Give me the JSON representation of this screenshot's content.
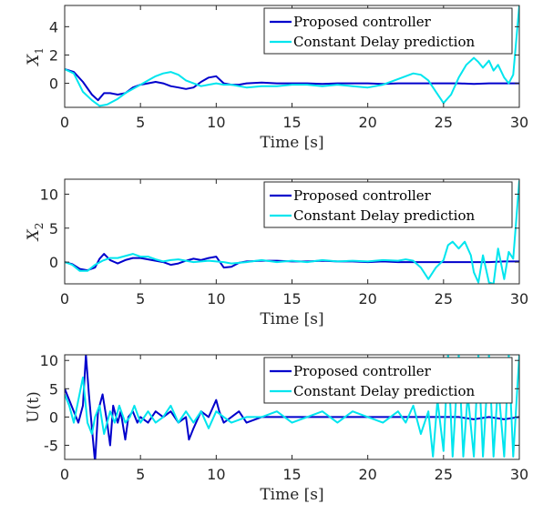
{
  "colors": {
    "proposed": "#0000cc",
    "constant": "#00e5ee",
    "axis": "#262626"
  },
  "chart_data": [
    {
      "type": "line",
      "ylabel": "X",
      "ylabel_sub": "1",
      "xlabel": "Time [s]",
      "xlim": [
        0,
        30
      ],
      "ylim": [
        -1.7,
        5.5
      ],
      "xticks": [
        "0",
        "5",
        "10",
        "15",
        "20",
        "25",
        "30"
      ],
      "yticks": [
        "0",
        "2",
        "4"
      ],
      "legend_position": "top-right",
      "series": [
        {
          "name": "Proposed controller",
          "x": [
            0,
            0.6,
            1.2,
            1.8,
            2.2,
            2.6,
            3.0,
            3.5,
            4.0,
            4.5,
            5.0,
            5.5,
            6.0,
            6.5,
            7.0,
            7.5,
            8.0,
            8.5,
            9.0,
            9.5,
            10.0,
            10.5,
            11.0,
            11.5,
            12.0,
            13,
            14,
            15,
            16,
            17,
            18,
            19,
            20,
            21,
            22,
            23,
            24,
            25,
            26,
            27,
            28,
            29,
            30
          ],
          "y": [
            1.0,
            0.8,
            0.1,
            -0.8,
            -1.2,
            -0.7,
            -0.7,
            -0.8,
            -0.7,
            -0.3,
            -0.1,
            0.0,
            0.1,
            0.0,
            -0.2,
            -0.3,
            -0.4,
            -0.3,
            0.1,
            0.4,
            0.5,
            0.0,
            -0.1,
            -0.1,
            0.0,
            0.05,
            0.0,
            0.0,
            0.0,
            -0.05,
            0.0,
            0.0,
            0.0,
            -0.05,
            0.0,
            0.0,
            0.0,
            0.0,
            0.0,
            -0.05,
            0.0,
            0.0,
            0.0
          ]
        },
        {
          "name": "Constant Delay prediction",
          "x": [
            0,
            0.6,
            1.2,
            1.8,
            2.3,
            2.8,
            3.5,
            4.0,
            4.5,
            5.0,
            5.5,
            6.0,
            6.5,
            7.0,
            7.5,
            8.0,
            8.5,
            9.0,
            9.5,
            10.0,
            10.5,
            11.0,
            11.5,
            12.0,
            13,
            14,
            15,
            16,
            17,
            18,
            19,
            20,
            21,
            22,
            23,
            23.5,
            24,
            24.5,
            25,
            25.5,
            26,
            26.5,
            27,
            27.3,
            27.6,
            28,
            28.3,
            28.6,
            29,
            29.3,
            29.6,
            30
          ],
          "y": [
            1.0,
            0.7,
            -0.6,
            -1.2,
            -1.6,
            -1.5,
            -1.1,
            -0.7,
            -0.4,
            -0.1,
            0.2,
            0.5,
            0.7,
            0.8,
            0.6,
            0.2,
            0.0,
            -0.2,
            -0.1,
            0.0,
            -0.1,
            -0.1,
            -0.2,
            -0.3,
            -0.2,
            -0.2,
            -0.1,
            -0.1,
            -0.2,
            -0.1,
            -0.2,
            -0.3,
            -0.1,
            0.3,
            0.7,
            0.6,
            0.2,
            -0.6,
            -1.4,
            -0.8,
            0.4,
            1.3,
            1.8,
            1.5,
            1.1,
            1.6,
            0.9,
            1.3,
            0.4,
            0.0,
            0.6,
            5.5
          ]
        }
      ]
    },
    {
      "type": "line",
      "ylabel": "X",
      "ylabel_sub": "2",
      "xlabel": "Time [s]",
      "xlim": [
        0,
        30
      ],
      "ylim": [
        -3.2,
        12.2
      ],
      "xticks": [
        "0",
        "5",
        "10",
        "15",
        "20",
        "25",
        "30"
      ],
      "yticks": [
        "0",
        "5",
        "10"
      ],
      "legend_position": "top-right",
      "series": [
        {
          "name": "Proposed controller",
          "x": [
            0,
            0.5,
            1.0,
            1.5,
            2.0,
            2.3,
            2.6,
            3.0,
            3.5,
            4.0,
            4.5,
            5.0,
            5.5,
            6.0,
            6.5,
            7.0,
            7.5,
            8.0,
            8.5,
            9.0,
            9.5,
            10.0,
            10.5,
            11.0,
            11.5,
            12,
            13,
            14,
            15,
            16,
            17,
            18,
            19,
            20,
            21,
            22,
            23,
            24,
            25,
            26,
            27,
            28,
            29,
            30
          ],
          "y": [
            0.0,
            -0.3,
            -1.0,
            -1.2,
            -0.8,
            0.5,
            1.2,
            0.3,
            -0.2,
            0.3,
            0.6,
            0.6,
            0.4,
            0.2,
            0.0,
            -0.4,
            -0.2,
            0.2,
            0.5,
            0.3,
            0.6,
            0.8,
            -0.8,
            -0.7,
            -0.1,
            0.1,
            0.2,
            0.2,
            0.1,
            0.1,
            0.2,
            0.1,
            0.1,
            0.0,
            0.1,
            0.0,
            0.0,
            0.0,
            0.0,
            0.0,
            0.0,
            0.0,
            0.1,
            0.1
          ]
        },
        {
          "name": "Constant Delay prediction",
          "x": [
            0,
            0.5,
            1.0,
            1.5,
            2.0,
            2.5,
            3.0,
            3.5,
            4.0,
            4.5,
            5.0,
            5.5,
            6.0,
            6.5,
            7.0,
            7.5,
            8.0,
            8.5,
            9.0,
            9.5,
            10.0,
            10.5,
            11.0,
            11.5,
            12,
            13,
            14,
            15,
            16,
            17,
            18,
            19,
            20,
            21,
            22,
            22.5,
            23,
            23.5,
            24,
            24.5,
            25,
            25.3,
            25.6,
            26,
            26.4,
            26.8,
            27,
            27.3,
            27.6,
            28,
            28.3,
            28.6,
            29,
            29.3,
            29.6,
            30
          ],
          "y": [
            0.0,
            -0.4,
            -1.3,
            -1.3,
            -0.4,
            0.2,
            0.6,
            0.6,
            0.9,
            1.2,
            0.8,
            0.8,
            0.4,
            0.1,
            0.3,
            0.4,
            0.2,
            0.0,
            0.1,
            0.2,
            0.1,
            0.0,
            -0.2,
            -0.1,
            0.0,
            0.3,
            0.0,
            0.2,
            0.0,
            0.3,
            0.1,
            0.2,
            0.1,
            0.3,
            0.2,
            0.4,
            0.2,
            -0.8,
            -2.5,
            -0.8,
            0.3,
            2.5,
            3.0,
            2.0,
            3.0,
            1.0,
            -1.5,
            -3.0,
            1.0,
            -3.0,
            -3.2,
            2.0,
            -2.5,
            1.5,
            0.5,
            12.0
          ]
        }
      ]
    },
    {
      "type": "line",
      "ylabel": "U(t)",
      "xlabel": "Time [s]",
      "xlim": [
        0,
        30
      ],
      "ylim": [
        -7.5,
        11
      ],
      "xticks": [
        "0",
        "5",
        "10",
        "15",
        "20",
        "25",
        "30"
      ],
      "yticks": [
        "-5",
        "0",
        "5",
        "10"
      ],
      "legend_position": "top-right",
      "series": [
        {
          "name": "Proposed controller",
          "x": [
            0,
            0.3,
            0.6,
            0.9,
            1.2,
            1.4,
            1.6,
            1.8,
            2.0,
            2.2,
            2.5,
            2.8,
            3.0,
            3.2,
            3.5,
            3.7,
            4.0,
            4.2,
            4.5,
            4.8,
            5,
            5.5,
            6,
            6.5,
            7,
            7.5,
            8,
            8.2,
            8.5,
            9,
            9.5,
            10,
            10.2,
            10.5,
            11,
            11.5,
            12,
            13,
            14,
            15,
            16,
            17,
            18,
            19,
            20,
            21,
            22,
            23,
            24,
            25,
            26,
            27,
            28,
            29,
            30
          ],
          "y": [
            5,
            3,
            1,
            -1,
            2,
            11,
            4,
            -2,
            -8,
            1,
            4,
            -1,
            -5,
            2,
            -1,
            1,
            -4,
            0,
            1,
            -1,
            0,
            -1,
            1,
            0,
            1,
            -1,
            0,
            -4,
            -2,
            1,
            0,
            3,
            1,
            -1,
            0,
            1,
            -1,
            0,
            0,
            0,
            0,
            0,
            0,
            0,
            0,
            0,
            0,
            0,
            0,
            0,
            0,
            -0.4,
            0,
            -0.4,
            0
          ]
        },
        {
          "name": "Constant Delay prediction",
          "x": [
            0,
            0.3,
            0.6,
            0.9,
            1.2,
            1.5,
            1.8,
            2.0,
            2.3,
            2.6,
            3.0,
            3.3,
            3.6,
            4.0,
            4.3,
            4.6,
            5,
            5.5,
            6,
            6.5,
            7,
            7.5,
            8,
            8.5,
            9,
            9.5,
            10,
            10.5,
            11,
            12,
            13,
            14,
            15,
            16,
            17,
            18,
            19,
            20,
            21,
            22,
            22.5,
            23,
            23.5,
            24,
            24.3,
            24.6,
            25,
            25.3,
            25.6,
            26,
            26.3,
            26.6,
            27,
            27.3,
            27.6,
            28,
            28.3,
            28.6,
            29,
            29.3,
            29.6,
            30
          ],
          "y": [
            4,
            2,
            -1,
            3,
            7,
            -1,
            -3,
            0,
            2,
            -3,
            1,
            -1,
            2,
            -1,
            0,
            2,
            -1,
            1,
            -1,
            0,
            2,
            -1,
            1,
            -1,
            1,
            -2,
            1,
            0,
            -1,
            0,
            0,
            1,
            -1,
            0,
            1,
            -1,
            1,
            0,
            -1,
            1,
            -1,
            2,
            -3,
            1,
            -7,
            3,
            -6,
            11,
            -7,
            11,
            -7,
            4,
            -7,
            11,
            -7,
            11,
            -7,
            6,
            -7,
            11,
            -7,
            11
          ]
        }
      ]
    }
  ]
}
